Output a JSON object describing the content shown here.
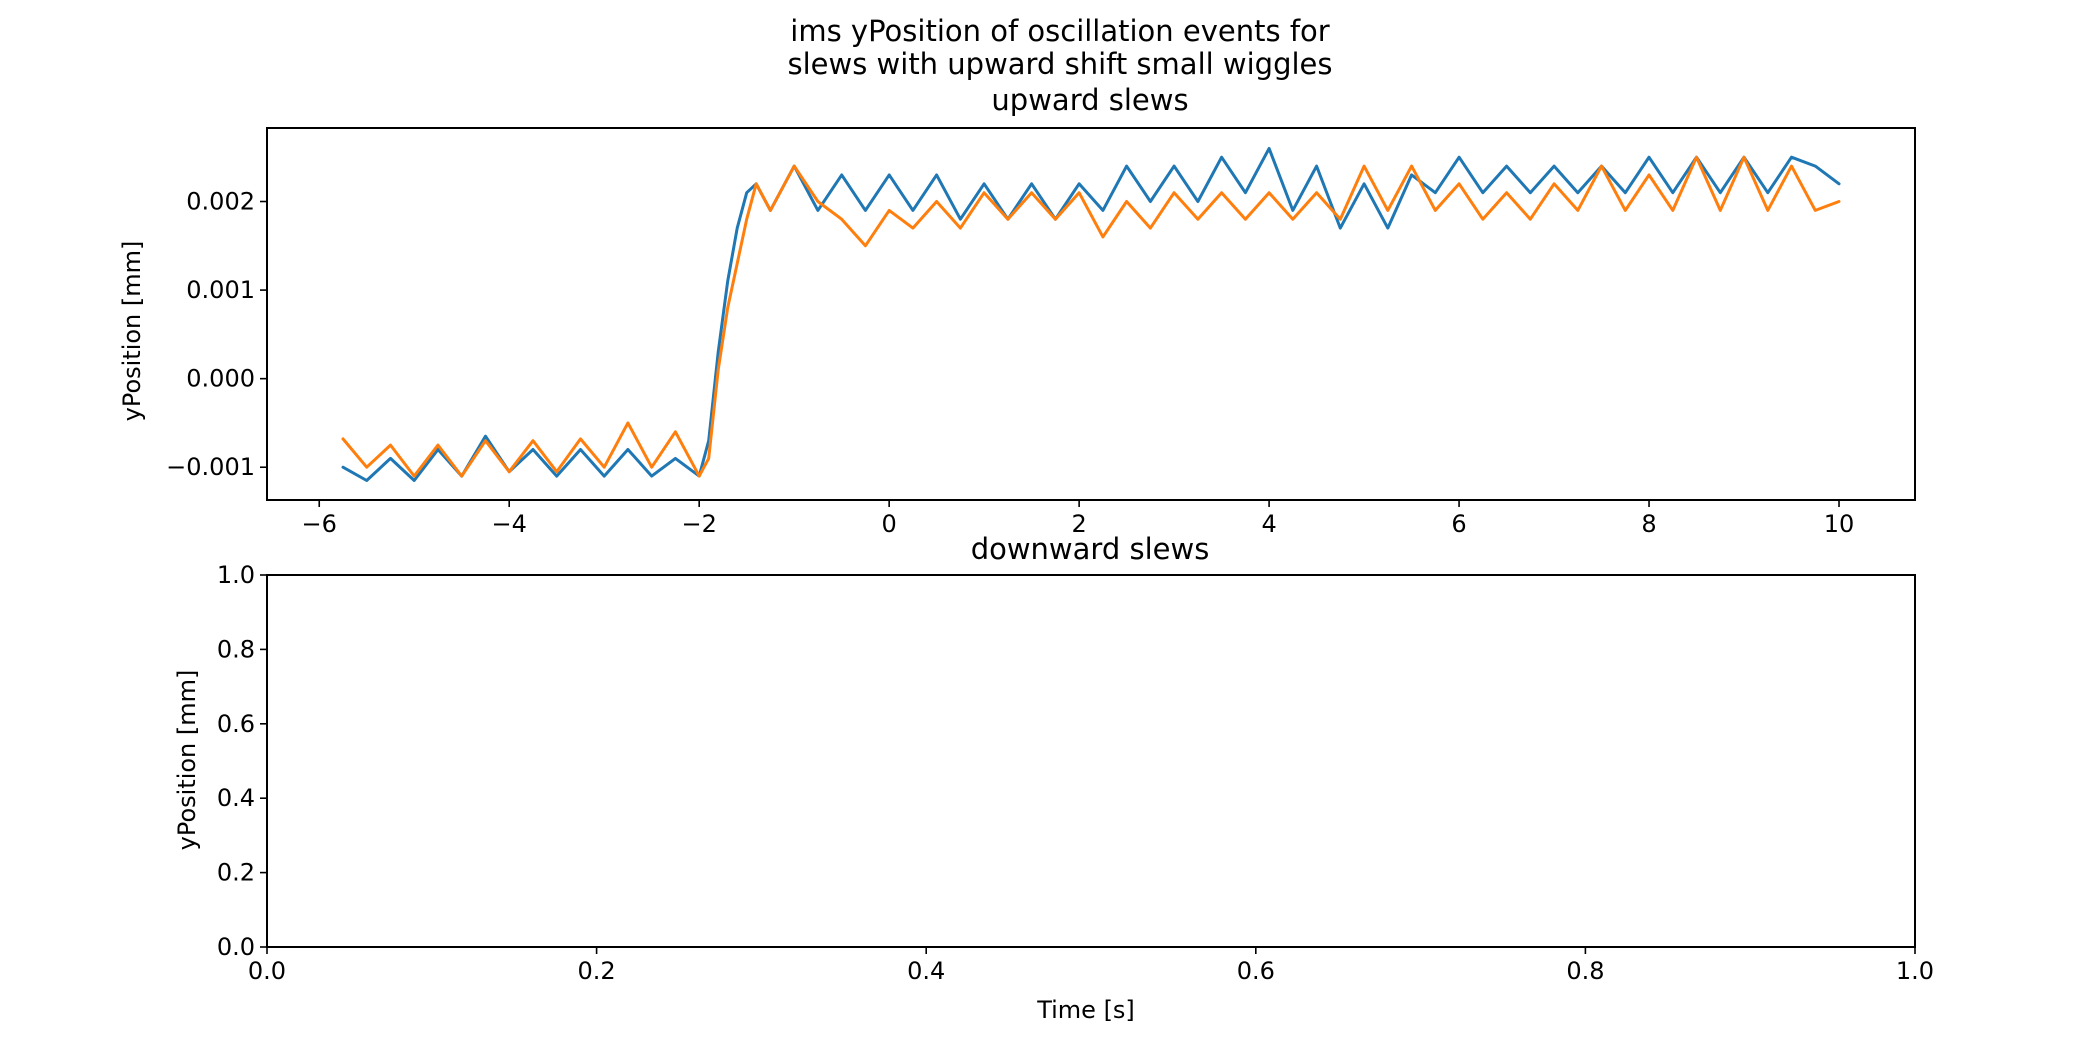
{
  "figure": {
    "suptitle_line1": "ims yPosition of oscillation events for",
    "suptitle_line2": "slews with upward shift small wiggles"
  },
  "chart_data": [
    {
      "type": "line",
      "title": "upward slews",
      "xlabel": "",
      "ylabel": "yPosition [mm]",
      "xlim": [
        -6.55,
        10.8
      ],
      "ylim": [
        -0.00137,
        0.00283
      ],
      "xticks": [
        -6,
        -4,
        -2,
        0,
        2,
        4,
        6,
        8,
        10
      ],
      "xtick_labels": [
        "−6",
        "−4",
        "−2",
        "0",
        "2",
        "4",
        "6",
        "8",
        "10"
      ],
      "yticks": [
        -0.001,
        0.0,
        0.001,
        0.002
      ],
      "ytick_labels": [
        "−0.001",
        "0.000",
        "0.001",
        "0.002"
      ],
      "grid": false,
      "series": [
        {
          "color": "#1f77b4",
          "x": [
            -5.75,
            -5.5,
            -5.25,
            -5.0,
            -4.75,
            -4.5,
            -4.25,
            -4.0,
            -3.75,
            -3.5,
            -3.25,
            -3.0,
            -2.75,
            -2.5,
            -2.25,
            -2.0,
            -1.9,
            -1.8,
            -1.7,
            -1.6,
            -1.5,
            -1.4,
            -1.25,
            -1.0,
            -0.75,
            -0.5,
            -0.25,
            0.0,
            0.25,
            0.5,
            0.75,
            1.0,
            1.25,
            1.5,
            1.75,
            2.0,
            2.25,
            2.5,
            2.75,
            3.0,
            3.25,
            3.5,
            3.75,
            4.0,
            4.25,
            4.5,
            4.75,
            5.0,
            5.25,
            5.5,
            5.75,
            6.0,
            6.25,
            6.5,
            6.75,
            7.0,
            7.25,
            7.5,
            7.75,
            8.0,
            8.25,
            8.5,
            8.75,
            9.0,
            9.25,
            9.5,
            9.75,
            10.0
          ],
          "y": [
            -0.001,
            -0.00115,
            -0.0009,
            -0.00115,
            -0.0008,
            -0.0011,
            -0.00065,
            -0.00105,
            -0.0008,
            -0.0011,
            -0.0008,
            -0.0011,
            -0.0008,
            -0.0011,
            -0.0009,
            -0.0011,
            -0.0007,
            0.0003,
            0.0011,
            0.0017,
            0.0021,
            0.0022,
            0.0019,
            0.0024,
            0.0019,
            0.0023,
            0.0019,
            0.0023,
            0.0019,
            0.0023,
            0.0018,
            0.0022,
            0.0018,
            0.0022,
            0.0018,
            0.0022,
            0.0019,
            0.0024,
            0.002,
            0.0024,
            0.002,
            0.0025,
            0.0021,
            0.0026,
            0.0019,
            0.0024,
            0.0017,
            0.0022,
            0.0017,
            0.0023,
            0.0021,
            0.0025,
            0.0021,
            0.0024,
            0.0021,
            0.0024,
            0.0021,
            0.0024,
            0.0021,
            0.0025,
            0.0021,
            0.0025,
            0.0021,
            0.0025,
            0.0021,
            0.0025,
            0.0024,
            0.0022
          ]
        },
        {
          "color": "#ff7f0e",
          "x": [
            -5.75,
            -5.5,
            -5.25,
            -5.0,
            -4.75,
            -4.5,
            -4.25,
            -4.0,
            -3.75,
            -3.5,
            -3.25,
            -3.0,
            -2.75,
            -2.5,
            -2.25,
            -2.0,
            -1.9,
            -1.8,
            -1.7,
            -1.6,
            -1.5,
            -1.4,
            -1.25,
            -1.0,
            -0.75,
            -0.5,
            -0.25,
            0.0,
            0.25,
            0.5,
            0.75,
            1.0,
            1.25,
            1.5,
            1.75,
            2.0,
            2.25,
            2.5,
            2.75,
            3.0,
            3.25,
            3.5,
            3.75,
            4.0,
            4.25,
            4.5,
            4.75,
            5.0,
            5.25,
            5.5,
            5.75,
            6.0,
            6.25,
            6.5,
            6.75,
            7.0,
            7.25,
            7.5,
            7.75,
            8.0,
            8.25,
            8.5,
            8.75,
            9.0,
            9.25,
            9.5,
            9.75,
            10.0
          ],
          "y": [
            -0.00068,
            -0.001,
            -0.00075,
            -0.0011,
            -0.00075,
            -0.0011,
            -0.0007,
            -0.00105,
            -0.0007,
            -0.00105,
            -0.00068,
            -0.001,
            -0.0005,
            -0.001,
            -0.0006,
            -0.0011,
            -0.0009,
            0.0001,
            0.0008,
            0.0013,
            0.0018,
            0.0022,
            0.0019,
            0.0024,
            0.002,
            0.0018,
            0.0015,
            0.0019,
            0.0017,
            0.002,
            0.0017,
            0.0021,
            0.0018,
            0.0021,
            0.0018,
            0.0021,
            0.0016,
            0.002,
            0.0017,
            0.0021,
            0.0018,
            0.0021,
            0.0018,
            0.0021,
            0.0018,
            0.0021,
            0.0018,
            0.0024,
            0.0019,
            0.0024,
            0.0019,
            0.0022,
            0.0018,
            0.0021,
            0.0018,
            0.0022,
            0.0019,
            0.0024,
            0.0019,
            0.0023,
            0.0019,
            0.0025,
            0.0019,
            0.0025,
            0.0019,
            0.0024,
            0.0019,
            0.002
          ]
        }
      ]
    },
    {
      "type": "line",
      "title": "downward slews",
      "xlabel": "Time [s]",
      "ylabel": "yPosition [mm]",
      "xlim": [
        0,
        1
      ],
      "ylim": [
        0,
        1
      ],
      "xticks": [
        0.0,
        0.2,
        0.4,
        0.6,
        0.8,
        1.0
      ],
      "xtick_labels": [
        "0.0",
        "0.2",
        "0.4",
        "0.6",
        "0.8",
        "1.0"
      ],
      "yticks": [
        0.0,
        0.2,
        0.4,
        0.6,
        0.8,
        1.0
      ],
      "ytick_labels": [
        "0.0",
        "0.2",
        "0.4",
        "0.6",
        "0.8",
        "1.0"
      ],
      "grid": false,
      "series": []
    }
  ]
}
